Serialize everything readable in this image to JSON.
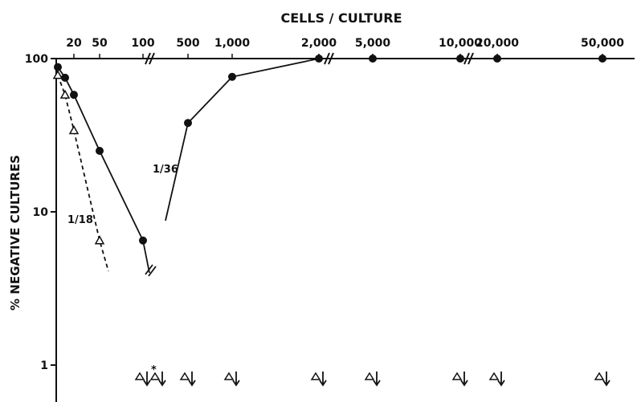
{
  "chart_data": {
    "type": "line",
    "title": "CELLS / CULTURE",
    "xlabel": "CELLS / CULTURE",
    "ylabel": "% NEGATIVE CULTURES",
    "yscale": "log",
    "ylim": [
      0.72,
      100
    ],
    "x_ticks": [
      "20",
      "50",
      "100",
      "500",
      "1,000",
      "2,000",
      "5,000",
      "10,000",
      "20,000",
      "50,000"
    ],
    "y_ticks": [
      "100",
      "10",
      "1"
    ],
    "axis_breaks": [
      "100",
      "2,000",
      "10,000"
    ],
    "series": [
      {
        "name": "1/36",
        "style": "solid",
        "marker": "filled-circle",
        "points": [
          {
            "x": 10,
            "y": 88
          },
          {
            "x": 15,
            "y": 75
          },
          {
            "x": 20,
            "y": 58
          },
          {
            "x": 50,
            "y": 25
          },
          {
            "x": 100,
            "y": 6.5
          }
        ]
      },
      {
        "name": "",
        "style": "solid",
        "marker": "filled-circle",
        "points": [
          {
            "x": 500,
            "y": 38
          },
          {
            "x": 1000,
            "y": 76
          },
          {
            "x": 2000,
            "y": 100
          },
          {
            "x": 5000,
            "y": 100
          },
          {
            "x": 10000,
            "y": 100
          },
          {
            "x": 20000,
            "y": 100
          },
          {
            "x": 50000,
            "y": 100
          }
        ]
      },
      {
        "name": "1/18",
        "style": "dashed",
        "marker": "open-triangle",
        "points": [
          {
            "x": 10,
            "y": 78
          },
          {
            "x": 15,
            "y": 58
          },
          {
            "x": 20,
            "y": 34
          },
          {
            "x": 50,
            "y": 6.5
          }
        ]
      }
    ],
    "below_one_markers": [
      "100",
      "100",
      "500",
      "1,000",
      "2,000",
      "5,000",
      "10,000",
      "20,000",
      "50,000"
    ],
    "asterisk": "*",
    "curve_labels": [
      "1/36",
      "1/18"
    ]
  }
}
